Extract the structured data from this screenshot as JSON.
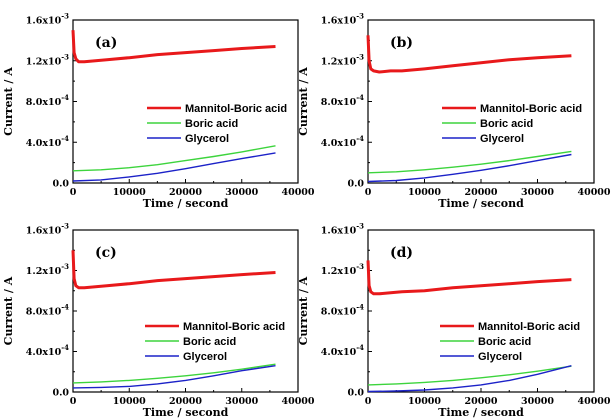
{
  "chart_data": [
    {
      "type": "line",
      "panel_label": "(a)",
      "xlabel": "Time / second",
      "ylabel": "Current / A",
      "xlim": [
        0,
        40000
      ],
      "ylim": [
        0,
        0.0016
      ],
      "x_ticks": [
        "0",
        "10000",
        "20000",
        "30000",
        "40000"
      ],
      "y_ticks": [
        "0.0",
        "4.0x10",
        "8.0x10",
        "1.2x10",
        "1.6x10"
      ],
      "y_tick_exponents": [
        "",
        "-4",
        "-4",
        "-3",
        "-3"
      ],
      "legend_position": "center-right",
      "series": [
        {
          "name": "Mannitol-Boric acid",
          "color": "#e8191b",
          "x": [
            0,
            200,
            500,
            1000,
            2000,
            4000,
            6000,
            10000,
            15000,
            20000,
            25000,
            30000,
            36000
          ],
          "y": [
            0.0015,
            0.00128,
            0.00122,
            0.00119,
            0.00119,
            0.0012,
            0.00121,
            0.00123,
            0.00126,
            0.00128,
            0.0013,
            0.00132,
            0.00134
          ]
        },
        {
          "name": "Boric acid",
          "color": "#3dd43d",
          "x": [
            0,
            5000,
            10000,
            15000,
            20000,
            25000,
            30000,
            36000
          ],
          "y": [
            0.00012,
            0.00013,
            0.00015,
            0.00018,
            0.00022,
            0.00026,
            0.000305,
            0.000365
          ]
        },
        {
          "name": "Glycerol",
          "color": "#1c22c8",
          "x": [
            0,
            5000,
            10000,
            15000,
            20000,
            25000,
            30000,
            36000
          ],
          "y": [
            2e-05,
            3e-05,
            6e-05,
            9.5e-05,
            0.00014,
            0.00019,
            0.00024,
            0.000295
          ]
        }
      ]
    },
    {
      "type": "line",
      "panel_label": "(b)",
      "xlabel": "Time / second",
      "ylabel": "Current / A",
      "xlim": [
        0,
        40000
      ],
      "ylim": [
        0,
        0.0016
      ],
      "x_ticks": [
        "0",
        "10000",
        "20000",
        "30000",
        "40000"
      ],
      "y_ticks": [
        "0.0",
        "4.0x10",
        "8.0x10",
        "1.2x10",
        "1.6x10"
      ],
      "y_tick_exponents": [
        "",
        "-4",
        "-4",
        "-3",
        "-3"
      ],
      "legend_position": "center-right",
      "series": [
        {
          "name": "Mannitol-Boric acid",
          "color": "#e8191b",
          "x": [
            0,
            200,
            500,
            1000,
            2000,
            4000,
            6000,
            10000,
            15000,
            20000,
            25000,
            30000,
            36000
          ],
          "y": [
            0.00145,
            0.0012,
            0.00112,
            0.0011,
            0.00109,
            0.0011,
            0.0011,
            0.00112,
            0.00115,
            0.00118,
            0.00121,
            0.00123,
            0.00125
          ]
        },
        {
          "name": "Boric acid",
          "color": "#3dd43d",
          "x": [
            0,
            5000,
            10000,
            15000,
            20000,
            25000,
            30000,
            36000
          ],
          "y": [
            0.0001,
            0.00011,
            0.00013,
            0.000155,
            0.000185,
            0.00022,
            0.00026,
            0.00031
          ]
        },
        {
          "name": "Glycerol",
          "color": "#1c22c8",
          "x": [
            0,
            5000,
            10000,
            15000,
            20000,
            25000,
            30000,
            36000
          ],
          "y": [
            1.5e-05,
            2.5e-05,
            5e-05,
            8.5e-05,
            0.000125,
            0.00017,
            0.00022,
            0.00028
          ]
        }
      ]
    },
    {
      "type": "line",
      "panel_label": "(c)",
      "xlabel": "Time / second",
      "ylabel": "Current / A",
      "xlim": [
        0,
        40000
      ],
      "ylim": [
        0,
        0.0016
      ],
      "x_ticks": [
        "0",
        "10000",
        "20000",
        "30000",
        "40000"
      ],
      "y_ticks": [
        "0.0",
        "4.0x10",
        "8.0x10",
        "1.2x10",
        "1.6x10"
      ],
      "y_tick_exponents": [
        "",
        "-4",
        "-4",
        "-3",
        "-3"
      ],
      "legend_position": "lower-right",
      "series": [
        {
          "name": "Mannitol-Boric acid",
          "color": "#e8191b",
          "x": [
            0,
            200,
            500,
            1000,
            2000,
            4000,
            6000,
            10000,
            15000,
            20000,
            25000,
            30000,
            36000
          ],
          "y": [
            0.0014,
            0.00112,
            0.00105,
            0.00103,
            0.00103,
            0.00104,
            0.00105,
            0.00107,
            0.0011,
            0.00112,
            0.00114,
            0.00116,
            0.00118
          ]
        },
        {
          "name": "Boric acid",
          "color": "#3dd43d",
          "x": [
            0,
            5000,
            10000,
            15000,
            20000,
            25000,
            30000,
            36000
          ],
          "y": [
            9e-05,
            0.0001,
            0.000115,
            0.000135,
            0.00016,
            0.00019,
            0.000225,
            0.000275
          ]
        },
        {
          "name": "Glycerol",
          "color": "#1c22c8",
          "x": [
            0,
            5000,
            10000,
            15000,
            20000,
            25000,
            30000,
            36000
          ],
          "y": [
            4e-05,
            4.5e-05,
            5.5e-05,
            8e-05,
            0.000115,
            0.00016,
            0.00021,
            0.00026
          ]
        }
      ]
    },
    {
      "type": "line",
      "panel_label": "(d)",
      "xlabel": "Time / second",
      "ylabel": "Current / A",
      "xlim": [
        0,
        40000
      ],
      "ylim": [
        0,
        0.0016
      ],
      "x_ticks": [
        "0",
        "10000",
        "20000",
        "30000",
        "40000"
      ],
      "y_ticks": [
        "0.0",
        "4.0x10",
        "8.0x10",
        "1.2x10",
        "1.6x10"
      ],
      "y_tick_exponents": [
        "",
        "-4",
        "-4",
        "-3",
        "-3"
      ],
      "legend_position": "lower-right",
      "series": [
        {
          "name": "Mannitol-Boric acid",
          "color": "#e8191b",
          "x": [
            0,
            200,
            500,
            1000,
            2000,
            4000,
            6000,
            10000,
            15000,
            20000,
            25000,
            30000,
            36000
          ],
          "y": [
            0.0013,
            0.00105,
            0.00099,
            0.00097,
            0.00097,
            0.00098,
            0.00099,
            0.001,
            0.00103,
            0.00105,
            0.00107,
            0.00109,
            0.00111
          ]
        },
        {
          "name": "Boric acid",
          "color": "#3dd43d",
          "x": [
            0,
            5000,
            10000,
            15000,
            20000,
            25000,
            30000,
            36000
          ],
          "y": [
            7e-05,
            8e-05,
            9.5e-05,
            0.000115,
            0.00014,
            0.00017,
            0.000205,
            0.000255
          ]
        },
        {
          "name": "Glycerol",
          "color": "#1c22c8",
          "x": [
            0,
            5000,
            10000,
            15000,
            20000,
            25000,
            30000,
            36000
          ],
          "y": [
            5e-06,
            1e-05,
            2e-05,
            4e-05,
            7e-05,
            0.000115,
            0.000175,
            0.00026
          ]
        }
      ]
    }
  ]
}
